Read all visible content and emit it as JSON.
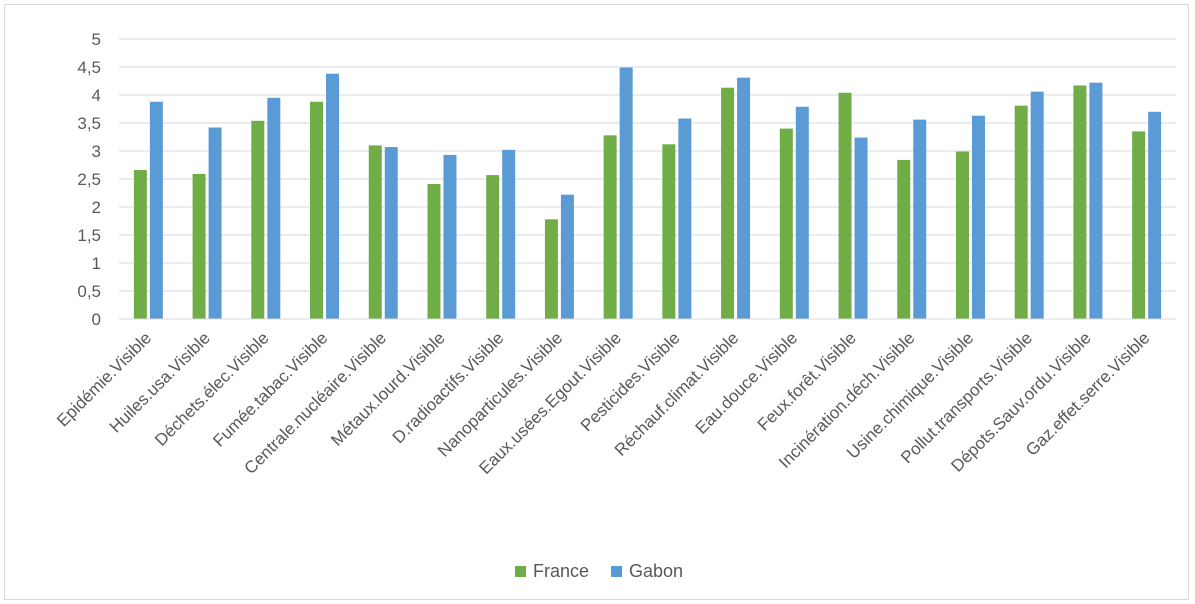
{
  "chart_data": {
    "type": "bar",
    "categories": [
      "Epidémie.Visible",
      "Huiles.usa.Visible",
      "Déchets.élec.Visible",
      "Fumée.tabac.Visible",
      "Centrale.nucléaire.Visible",
      "Métaux.lourd.Visible",
      "D.radioactifs.Visible",
      "Nanoparticules.Visible",
      "Eaux.usées.Egout.Visible",
      "Pesticides.Visible",
      "Réchauf.climat.Visible",
      "Eau.douce.Visible",
      "Feux.forêt.Visible",
      "Incinération.déch.Visible",
      "Usine.chimique.Visible",
      "Pollut.transports.Visible",
      "Dépots.Sauv.ordu.Visible",
      "Gaz.effet.serre.Visible"
    ],
    "series": [
      {
        "name": "France",
        "color": "#70ad47",
        "values": [
          2.66,
          2.59,
          3.54,
          3.88,
          3.1,
          2.41,
          2.57,
          1.78,
          3.28,
          3.12,
          4.13,
          3.4,
          4.04,
          2.84,
          2.99,
          3.81,
          4.17,
          3.35
        ]
      },
      {
        "name": "Gabon",
        "color": "#5b9bd5",
        "values": [
          3.88,
          3.42,
          3.95,
          4.38,
          3.07,
          2.93,
          3.02,
          2.22,
          4.49,
          3.58,
          4.31,
          3.79,
          3.24,
          3.56,
          3.63,
          4.06,
          4.22,
          3.7
        ]
      }
    ],
    "y_ticks": [
      "0",
      "0,5",
      "1",
      "1,5",
      "2",
      "2,5",
      "3",
      "3,5",
      "4",
      "4,5",
      "5"
    ],
    "ylim": [
      0,
      5
    ],
    "grid": true,
    "legend_position": "bottom",
    "title": "",
    "xlabel": "",
    "ylabel": ""
  }
}
